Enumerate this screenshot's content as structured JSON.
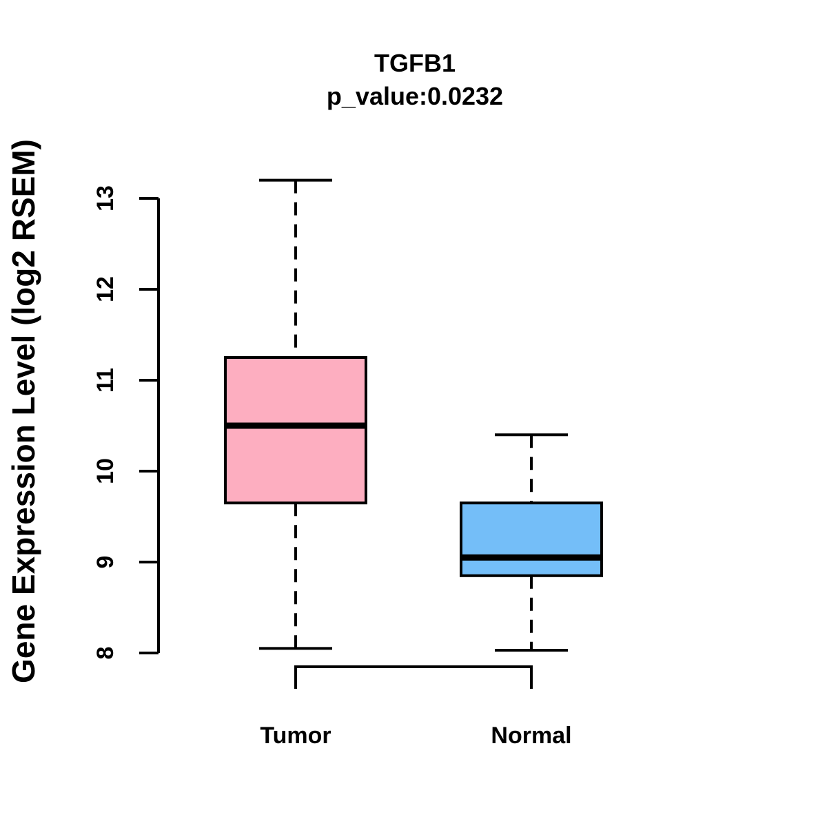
{
  "chart_data": {
    "type": "boxplot",
    "title": "TGFB1",
    "subtitle": "p_value:0.0232",
    "ylabel": "Gene Expression Level (log2 RSEM)",
    "xlabel": "",
    "ylim": [
      8,
      13
    ],
    "yticks": [
      8,
      9,
      10,
      11,
      12,
      13
    ],
    "grid": false,
    "legend": "none",
    "whisker_style": "dashed",
    "categories": [
      "Tumor",
      "Normal"
    ],
    "series": [
      {
        "name": "Tumor",
        "color": "#FDAEC0",
        "min": 8.05,
        "q1": 9.65,
        "median": 10.5,
        "q3": 11.25,
        "max": 13.2
      },
      {
        "name": "Normal",
        "color": "#74BEF8",
        "min": 8.03,
        "q1": 8.85,
        "median": 9.05,
        "q3": 9.65,
        "max": 10.4
      }
    ],
    "stroke_color": "#000000",
    "background": "#FFFFFF"
  }
}
